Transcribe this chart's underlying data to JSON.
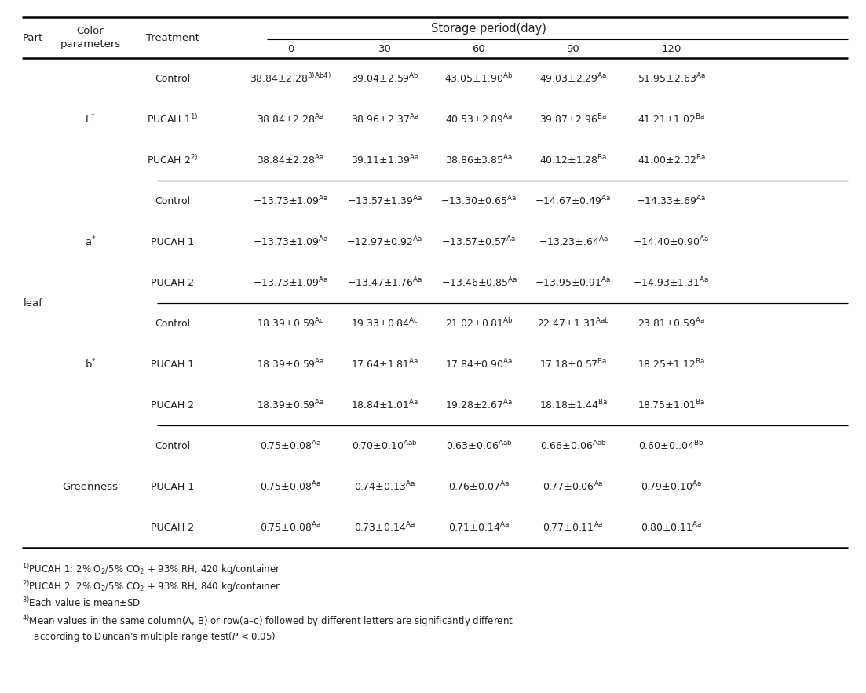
{
  "title": "Storage period(day)",
  "col_headers": [
    "0",
    "30",
    "60",
    "90",
    "120"
  ],
  "part": "leaf",
  "sections": [
    {
      "param": "L*",
      "rows": [
        {
          "treatment": "Control",
          "values": [
            "38.84±2.28",
            "39.04±2.59",
            "43.05±1.90",
            "49.03±2.29",
            "51.95±2.63"
          ],
          "superscripts": [
            "3)Ab4)",
            "Ab",
            "Ab",
            "Aa",
            "Aa"
          ]
        },
        {
          "treatment": "PUCAH 1",
          "treatment_sup": "1)",
          "values": [
            "38.84±2.28",
            "38.96±2.37",
            "40.53±2.89",
            "39.87±2.96",
            "41.21±1.02"
          ],
          "superscripts": [
            "Aa",
            "Aa",
            "Aa",
            "Ba",
            "Ba"
          ]
        },
        {
          "treatment": "PUCAH 2",
          "treatment_sup": "2)",
          "values": [
            "38.84±2.28",
            "39.11±1.39",
            "38.86±3.85",
            "40.12±1.28",
            "41.00±2.32"
          ],
          "superscripts": [
            "Aa",
            "Aa",
            "Aa",
            "Ba",
            "Ba"
          ]
        }
      ]
    },
    {
      "param": "a*",
      "rows": [
        {
          "treatment": "Control",
          "values": [
            "−13.73±1.09",
            "−13.57±1.39",
            "−13.30±0.65",
            "−14.67±0.49",
            "−14.33±.69"
          ],
          "superscripts": [
            "Aa",
            "Aa",
            "Aa",
            "Aa",
            "Aa"
          ]
        },
        {
          "treatment": "PUCAH 1",
          "treatment_sup": "",
          "values": [
            "−13.73±1.09",
            "−12.97±0.92",
            "−13.57±0.57",
            "−13.23±.64",
            "−14.40±0.90"
          ],
          "superscripts": [
            "Aa",
            "Aa",
            "Aa",
            "Aa",
            "Aa"
          ]
        },
        {
          "treatment": "PUCAH 2",
          "treatment_sup": "",
          "values": [
            "−13.73±1.09",
            "−13.47±1.76",
            "−13.46±0.85",
            "−13.95±0.91",
            "−14.93±1.31"
          ],
          "superscripts": [
            "Aa",
            "Aa",
            "Aa",
            "Aa",
            "Aa"
          ]
        }
      ]
    },
    {
      "param": "b*",
      "rows": [
        {
          "treatment": "Control",
          "values": [
            "18.39±0.59",
            "19.33±0.84",
            "21.02±0.81",
            "22.47±1.31",
            "23.81±0.59"
          ],
          "superscripts": [
            "Ac",
            "Ac",
            "Ab",
            "Aab",
            "Aa"
          ]
        },
        {
          "treatment": "PUCAH 1",
          "treatment_sup": "",
          "values": [
            "18.39±0.59",
            "17.64±1.81",
            "17.84±0.90",
            "17.18±0.57",
            "18.25±1.12"
          ],
          "superscripts": [
            "Aa",
            "Aa",
            "Aa",
            "Ba",
            "Ba"
          ]
        },
        {
          "treatment": "PUCAH 2",
          "treatment_sup": "",
          "values": [
            "18.39±0.59",
            "18.84±1.01",
            "19.28±2.67",
            "18.18±1.44",
            "18.75±1.01"
          ],
          "superscripts": [
            "Aa",
            "Aa",
            "Aa",
            "Ba",
            "Ba"
          ]
        }
      ]
    },
    {
      "param": "Greenness",
      "rows": [
        {
          "treatment": "Control",
          "values": [
            "0.75±0.08",
            "0.70±0.10",
            "0.63±0.06",
            "0.66±0.06",
            "0.60±0..04"
          ],
          "superscripts": [
            "Aa",
            "Aab",
            "Aab",
            "Aab",
            "Bb"
          ]
        },
        {
          "treatment": "PUCAH 1",
          "treatment_sup": "",
          "values": [
            "0.75±0.08",
            "0.74±0.13",
            "0.76±0.07",
            "0.77±0.06",
            "0.79±0.10"
          ],
          "superscripts": [
            "Aa",
            "Aa",
            "Aa",
            "Aa",
            "Aa"
          ]
        },
        {
          "treatment": "PUCAH 2",
          "treatment_sup": "",
          "values": [
            "0.75±0.08",
            "0.73±0.14",
            "0.71±0.14",
            "0.77±0.11",
            "0.80±0.11"
          ],
          "superscripts": [
            "Aa",
            "Aa",
            "Aa",
            "Aa",
            "Aa"
          ]
        }
      ]
    }
  ],
  "footnotes": [
    [
      "1)",
      "PUCAH 1: 2% O",
      "2",
      "/5% CO",
      "2",
      " + 93% RH, 420 kg/container"
    ],
    [
      "2)",
      "PUCAH 2: 2% O",
      "2",
      "/5% CO",
      "2",
      " + 93% RH, 840 kg/container"
    ],
    [
      "3)",
      "Each value is mean±SD"
    ],
    [
      "4)",
      "Mean values in the same column(A, B) or row(a–c) followed by different letters are significantly different\n    according to Duncan’s multiple range test(",
      "P",
      " < 0.05)"
    ]
  ],
  "bg_color": "#ffffff",
  "text_color": "#222222",
  "line_color": "#000000",
  "header_fontsize": 9.5,
  "cell_fontsize": 9.0,
  "footnote_fontsize": 8.5
}
